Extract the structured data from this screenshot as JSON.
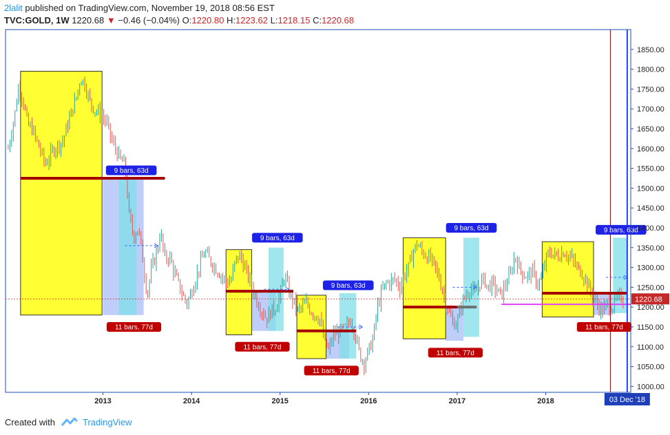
{
  "header": {
    "author": "2lalit",
    "published_text": "published on TradingView.com, November 19, 2018 08:56 EST",
    "symbol": "TVC:GOLD, 1W",
    "last": "1220.68",
    "change": "−0.46 (−0.04%)",
    "o_label": "O:",
    "o_value": "1220.80",
    "h_label": "H:",
    "h_value": "1223.62",
    "l_label": "L:",
    "l_value": "1218.15",
    "c_label": "C:",
    "c_value": "1220.68"
  },
  "footer": {
    "created_with": "Created with",
    "brand": "TradingView"
  },
  "colors": {
    "up": "#26a69a",
    "down": "#ef5350",
    "box_yellow": "#ffff33",
    "box_cyan": "#80deea",
    "box_lavender": "#b3c5f7",
    "level": "#a50000",
    "gray_level": "#707070",
    "magenta": "#e040fb",
    "blue_line": "#1e40ff",
    "maroon_line": "#8b0000",
    "axis": "#1e4eb8"
  },
  "chart_data": {
    "type": "candlestick",
    "timeframe": "1W",
    "y_axis": {
      "ticks": [
        1850,
        1800,
        1750,
        1700,
        1650,
        1600,
        1550,
        1500,
        1450,
        1400,
        1350,
        1300,
        1250,
        1200,
        1150,
        1100,
        1050,
        1000
      ],
      "labels": [
        "1850.00",
        "1800.00",
        "1750.00",
        "1700.00",
        "1650.00",
        "1600.00",
        "1550.00",
        "1500.00",
        "1450.00",
        "1400.00",
        "1350.00",
        "1300.00",
        "1250.00",
        "1200.00",
        "1150.00",
        "1100.00",
        "1050.00",
        "1000.00"
      ],
      "range": [
        985,
        1900
      ]
    },
    "x_axis": {
      "ticks": [
        "2013",
        "2014",
        "2015",
        "2016",
        "2017",
        "2018"
      ],
      "tick_values": [
        2013.0,
        2014.0,
        2015.0,
        2016.0,
        2017.0,
        2018.0
      ],
      "range": [
        2011.9,
        2018.96
      ]
    },
    "last_price": {
      "value": 1220.68,
      "label": "1220.68"
    },
    "cursor_date": {
      "label": "03 Dec '18",
      "x": 2018.92
    },
    "price_path": [
      [
        2011.93,
        1600
      ],
      [
        2012.0,
        1680
      ],
      [
        2012.05,
        1760
      ],
      [
        2012.1,
        1720
      ],
      [
        2012.15,
        1660
      ],
      [
        2012.2,
        1650
      ],
      [
        2012.25,
        1620
      ],
      [
        2012.3,
        1590
      ],
      [
        2012.35,
        1560
      ],
      [
        2012.4,
        1580
      ],
      [
        2012.45,
        1600
      ],
      [
        2012.55,
        1620
      ],
      [
        2012.6,
        1660
      ],
      [
        2012.7,
        1730
      ],
      [
        2012.75,
        1780
      ],
      [
        2012.8,
        1760
      ],
      [
        2012.85,
        1720
      ],
      [
        2012.9,
        1700
      ],
      [
        2012.95,
        1690
      ],
      [
        2013.0,
        1680
      ],
      [
        2013.05,
        1660
      ],
      [
        2013.1,
        1620
      ],
      [
        2013.2,
        1570
      ],
      [
        2013.25,
        1560
      ],
      [
        2013.3,
        1420
      ],
      [
        2013.35,
        1380
      ],
      [
        2013.4,
        1400
      ],
      [
        2013.45,
        1320
      ],
      [
        2013.5,
        1230
      ],
      [
        2013.55,
        1300
      ],
      [
        2013.6,
        1330
      ],
      [
        2013.65,
        1390
      ],
      [
        2013.7,
        1320
      ],
      [
        2013.75,
        1330
      ],
      [
        2013.8,
        1290
      ],
      [
        2013.85,
        1260
      ],
      [
        2013.9,
        1230
      ],
      [
        2013.95,
        1210
      ],
      [
        2014.0,
        1240
      ],
      [
        2014.1,
        1310
      ],
      [
        2014.15,
        1340
      ],
      [
        2014.2,
        1320
      ],
      [
        2014.3,
        1290
      ],
      [
        2014.4,
        1260
      ],
      [
        2014.45,
        1270
      ],
      [
        2014.5,
        1320
      ],
      [
        2014.55,
        1330
      ],
      [
        2014.6,
        1300
      ],
      [
        2014.7,
        1240
      ],
      [
        2014.75,
        1210
      ],
      [
        2014.85,
        1170
      ],
      [
        2014.9,
        1190
      ],
      [
        2014.95,
        1200
      ],
      [
        2015.0,
        1230
      ],
      [
        2015.05,
        1280
      ],
      [
        2015.1,
        1240
      ],
      [
        2015.2,
        1190
      ],
      [
        2015.25,
        1200
      ],
      [
        2015.3,
        1210
      ],
      [
        2015.35,
        1190
      ],
      [
        2015.4,
        1180
      ],
      [
        2015.45,
        1170
      ],
      [
        2015.5,
        1110
      ],
      [
        2015.55,
        1090
      ],
      [
        2015.6,
        1130
      ],
      [
        2015.7,
        1140
      ],
      [
        2015.75,
        1150
      ],
      [
        2015.8,
        1170
      ],
      [
        2015.85,
        1130
      ],
      [
        2015.9,
        1080
      ],
      [
        2015.95,
        1060
      ],
      [
        2016.0,
        1090
      ],
      [
        2016.05,
        1120
      ],
      [
        2016.1,
        1200
      ],
      [
        2016.15,
        1240
      ],
      [
        2016.2,
        1260
      ],
      [
        2016.3,
        1270
      ],
      [
        2016.35,
        1250
      ],
      [
        2016.4,
        1280
      ],
      [
        2016.45,
        1300
      ],
      [
        2016.5,
        1340
      ],
      [
        2016.55,
        1360
      ],
      [
        2016.6,
        1340
      ],
      [
        2016.7,
        1320
      ],
      [
        2016.75,
        1300
      ],
      [
        2016.8,
        1270
      ],
      [
        2016.85,
        1230
      ],
      [
        2016.9,
        1190
      ],
      [
        2016.95,
        1160
      ],
      [
        2017.0,
        1160
      ],
      [
        2017.05,
        1210
      ],
      [
        2017.1,
        1230
      ],
      [
        2017.15,
        1250
      ],
      [
        2017.2,
        1230
      ],
      [
        2017.25,
        1260
      ],
      [
        2017.3,
        1270
      ],
      [
        2017.35,
        1250
      ],
      [
        2017.4,
        1260
      ],
      [
        2017.45,
        1240
      ],
      [
        2017.5,
        1230
      ],
      [
        2017.55,
        1260
      ],
      [
        2017.6,
        1280
      ],
      [
        2017.65,
        1330
      ],
      [
        2017.7,
        1300
      ],
      [
        2017.75,
        1280
      ],
      [
        2017.8,
        1280
      ],
      [
        2017.85,
        1290
      ],
      [
        2017.9,
        1260
      ],
      [
        2017.95,
        1270
      ],
      [
        2018.0,
        1320
      ],
      [
        2018.05,
        1340
      ],
      [
        2018.1,
        1330
      ],
      [
        2018.15,
        1330
      ],
      [
        2018.2,
        1340
      ],
      [
        2018.25,
        1330
      ],
      [
        2018.3,
        1320
      ],
      [
        2018.35,
        1300
      ],
      [
        2018.4,
        1290
      ],
      [
        2018.45,
        1270
      ],
      [
        2018.5,
        1240
      ],
      [
        2018.55,
        1220
      ],
      [
        2018.6,
        1200
      ],
      [
        2018.65,
        1190
      ],
      [
        2018.7,
        1210
      ],
      [
        2018.75,
        1200
      ],
      [
        2018.8,
        1220
      ],
      [
        2018.85,
        1225
      ],
      [
        2018.89,
        1221
      ]
    ],
    "yellow_boxes": [
      {
        "x": [
          2012.07,
          2012.99
        ],
        "y": [
          1180,
          1795
        ]
      },
      {
        "x": [
          2014.39,
          2014.68
        ],
        "y": [
          1130,
          1345
        ]
      },
      {
        "x": [
          2015.19,
          2015.52
        ],
        "y": [
          1070,
          1230
        ]
      },
      {
        "x": [
          2016.39,
          2016.87
        ],
        "y": [
          1120,
          1375
        ]
      },
      {
        "x": [
          2017.96,
          2018.54
        ],
        "y": [
          1175,
          1365
        ]
      }
    ],
    "lavender_boxes": [
      {
        "x": [
          2013.0,
          2013.46
        ],
        "y": [
          1180,
          1525
        ]
      },
      {
        "x": [
          2014.68,
          2014.95
        ],
        "y": [
          1140,
          1240
        ]
      },
      {
        "x": [
          2015.52,
          2015.78
        ],
        "y": [
          1070,
          1140
        ]
      },
      {
        "x": [
          2016.87,
          2017.07
        ],
        "y": [
          1115,
          1200
        ]
      },
      {
        "x": [
          2018.54,
          2018.76
        ],
        "y": [
          1180,
          1235
        ]
      }
    ],
    "cyan_boxes": [
      {
        "x": [
          2013.18,
          2013.38
        ],
        "y": [
          1180,
          1525
        ]
      },
      {
        "x": [
          2014.87,
          2015.04
        ],
        "y": [
          1140,
          1350
        ]
      },
      {
        "x": [
          2015.67,
          2015.86
        ],
        "y": [
          1070,
          1235
        ]
      },
      {
        "x": [
          2017.07,
          2017.25
        ],
        "y": [
          1125,
          1375
        ]
      },
      {
        "x": [
          2018.76,
          2018.92
        ],
        "y": [
          1185,
          1375
        ]
      }
    ],
    "levels": [
      {
        "x": [
          2012.07,
          2013.7
        ],
        "y": 1525,
        "color": "level"
      },
      {
        "x": [
          2014.39,
          2015.15
        ],
        "y": 1240,
        "color": "level"
      },
      {
        "x": [
          2015.19,
          2015.86
        ],
        "y": 1140,
        "color": "level"
      },
      {
        "x": [
          2016.39,
          2017.0
        ],
        "y": 1200,
        "color": "level"
      },
      {
        "x": [
          2017.0,
          2017.22
        ],
        "y": 1200,
        "color": "gray_level"
      },
      {
        "x": [
          2017.96,
          2018.92
        ],
        "y": 1235,
        "color": "level"
      },
      {
        "x": [
          2017.5,
          2018.96
        ],
        "y": 1207,
        "color": "magenta"
      }
    ],
    "projections": [
      {
        "x": [
          2013.25,
          2013.62
        ],
        "y": 1355
      },
      {
        "x": [
          2014.82,
          2015.1
        ],
        "y": 1245
      },
      {
        "x": [
          2015.65,
          2015.93
        ],
        "y": 1150
      },
      {
        "x": [
          2016.95,
          2017.22
        ],
        "y": 1250
      },
      {
        "x": [
          2018.68,
          2018.92
        ],
        "y": 1275
      }
    ],
    "label_9": "9 bars, 63d",
    "label_11": "11 bars, 77d",
    "bar_labels_9": [
      {
        "x": 2013.32,
        "y": 1545
      },
      {
        "x": 2014.97,
        "y": 1375
      },
      {
        "x": 2015.77,
        "y": 1255
      },
      {
        "x": 2017.16,
        "y": 1400
      },
      {
        "x": 2018.85,
        "y": 1395
      }
    ],
    "bar_labels_11": [
      {
        "x": 2013.35,
        "y": 1150
      },
      {
        "x": 2014.8,
        "y": 1100
      },
      {
        "x": 2015.58,
        "y": 1040
      },
      {
        "x": 2016.98,
        "y": 1085
      },
      {
        "x": 2018.66,
        "y": 1150
      }
    ],
    "vertical_lines": [
      {
        "x": 2018.73,
        "color": "maroon_line"
      },
      {
        "x": 2018.92,
        "color": "blue_line"
      }
    ]
  }
}
